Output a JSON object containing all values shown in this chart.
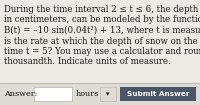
{
  "bg_color": "#edeae5",
  "panel_color": "#dedad4",
  "answer_box_color": "#ffffff",
  "button_color": "#4a5568",
  "button_text_color": "#ffffff",
  "text_color": "#1a1a1a",
  "main_text_lines": [
    "During the time interval 2 ≤ t ≤ 6, the depth of snow on the ground,",
    "in centimeters, can be modeled by the function",
    "B(t) = –10 sin(0.04t²) + 13, where t is measured in hours. What",
    "is the rate at which the depth of snow on the ground is changing at",
    "time t = 5? You may use a calculator and round to the nearest",
    "thousandth. Indicate units of measure."
  ],
  "answer_label": "Answer:",
  "units_label": "hours",
  "dropdown_arrow": "▾",
  "button_label": "Submit Answer",
  "font_size_main": 6.2,
  "font_size_ui": 5.8,
  "font_size_btn": 5.2
}
